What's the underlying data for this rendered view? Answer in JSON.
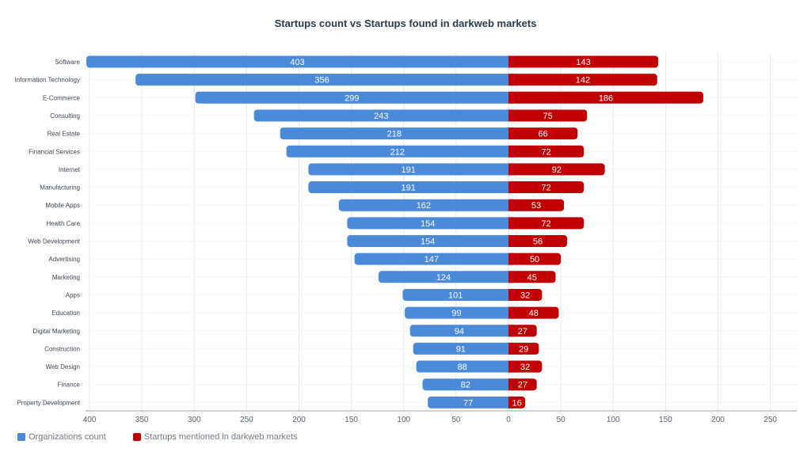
{
  "chart_data": {
    "type": "bar",
    "orientation": "horizontal-diverging",
    "title": "Startups count vs Startups found in darkweb markets",
    "categories": [
      "Software",
      "Information Technology",
      "E-Commerce",
      "Consulting",
      "Real Estate",
      "Financial Services",
      "Internet",
      "Manufacturing",
      "Mobile Apps",
      "Health Care",
      "Web Development",
      "Advertising",
      "Marketing",
      "Apps",
      "Education",
      "Digital Marketing",
      "Construction",
      "Web Design",
      "Finance",
      "Property Development"
    ],
    "series": [
      {
        "name": "Organizations count",
        "color": "#4a8ad8",
        "side": "left",
        "values": [
          403,
          356,
          299,
          243,
          218,
          212,
          191,
          191,
          162,
          154,
          154,
          147,
          124,
          101,
          99,
          94,
          91,
          88,
          82,
          77
        ]
      },
      {
        "name": "Startups mentioned in darkweb markets",
        "color": "#c00000",
        "side": "right",
        "values": [
          143,
          142,
          186,
          75,
          66,
          72,
          92,
          72,
          53,
          72,
          56,
          50,
          45,
          32,
          48,
          27,
          29,
          32,
          27,
          16
        ]
      }
    ],
    "xlim": [
      -400,
      250
    ],
    "x_ticks": [
      -400,
      -350,
      -300,
      -250,
      -200,
      -150,
      -100,
      -50,
      0,
      50,
      100,
      150,
      200,
      250
    ],
    "x_tick_labels": [
      "400",
      "350",
      "300",
      "250",
      "200",
      "150",
      "100",
      "50",
      "0",
      "50",
      "100",
      "150",
      "200",
      "250"
    ],
    "grid": true,
    "legend_position": "bottom-left"
  }
}
